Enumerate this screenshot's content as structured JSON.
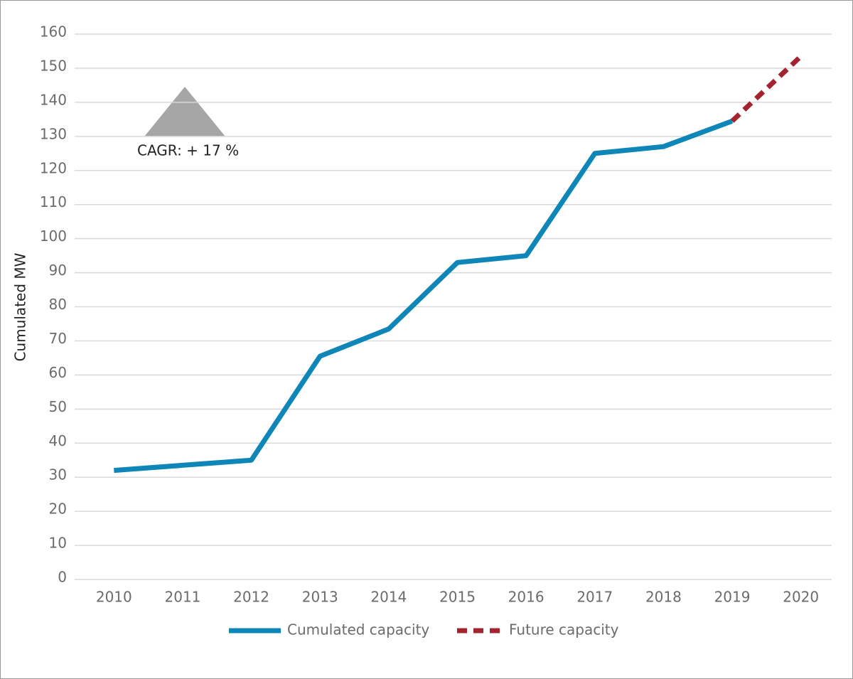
{
  "chart_data": {
    "type": "line",
    "y_label": "Cumulated MW",
    "annotation": "CAGR: + 17 %",
    "categories": [
      "2010",
      "2011",
      "2012",
      "2013",
      "2014",
      "2015",
      "2016",
      "2017",
      "2018",
      "2019",
      "2020"
    ],
    "series": [
      {
        "name": "Cumulated capacity",
        "color": "#0e87b8",
        "dashed": false,
        "values": [
          32,
          33.5,
          35,
          65.5,
          73.5,
          93,
          95,
          125,
          127,
          134.5,
          null
        ]
      },
      {
        "name": "Future capacity",
        "color": "#a3242f",
        "dashed": true,
        "values": [
          null,
          null,
          null,
          null,
          null,
          null,
          null,
          null,
          null,
          134.5,
          153.5
        ]
      }
    ],
    "ylim": [
      0,
      160
    ],
    "yticks": [
      0,
      10,
      20,
      30,
      40,
      50,
      60,
      70,
      80,
      90,
      100,
      110,
      120,
      130,
      140,
      150,
      160
    ],
    "grid": true,
    "legend": "bottom"
  }
}
